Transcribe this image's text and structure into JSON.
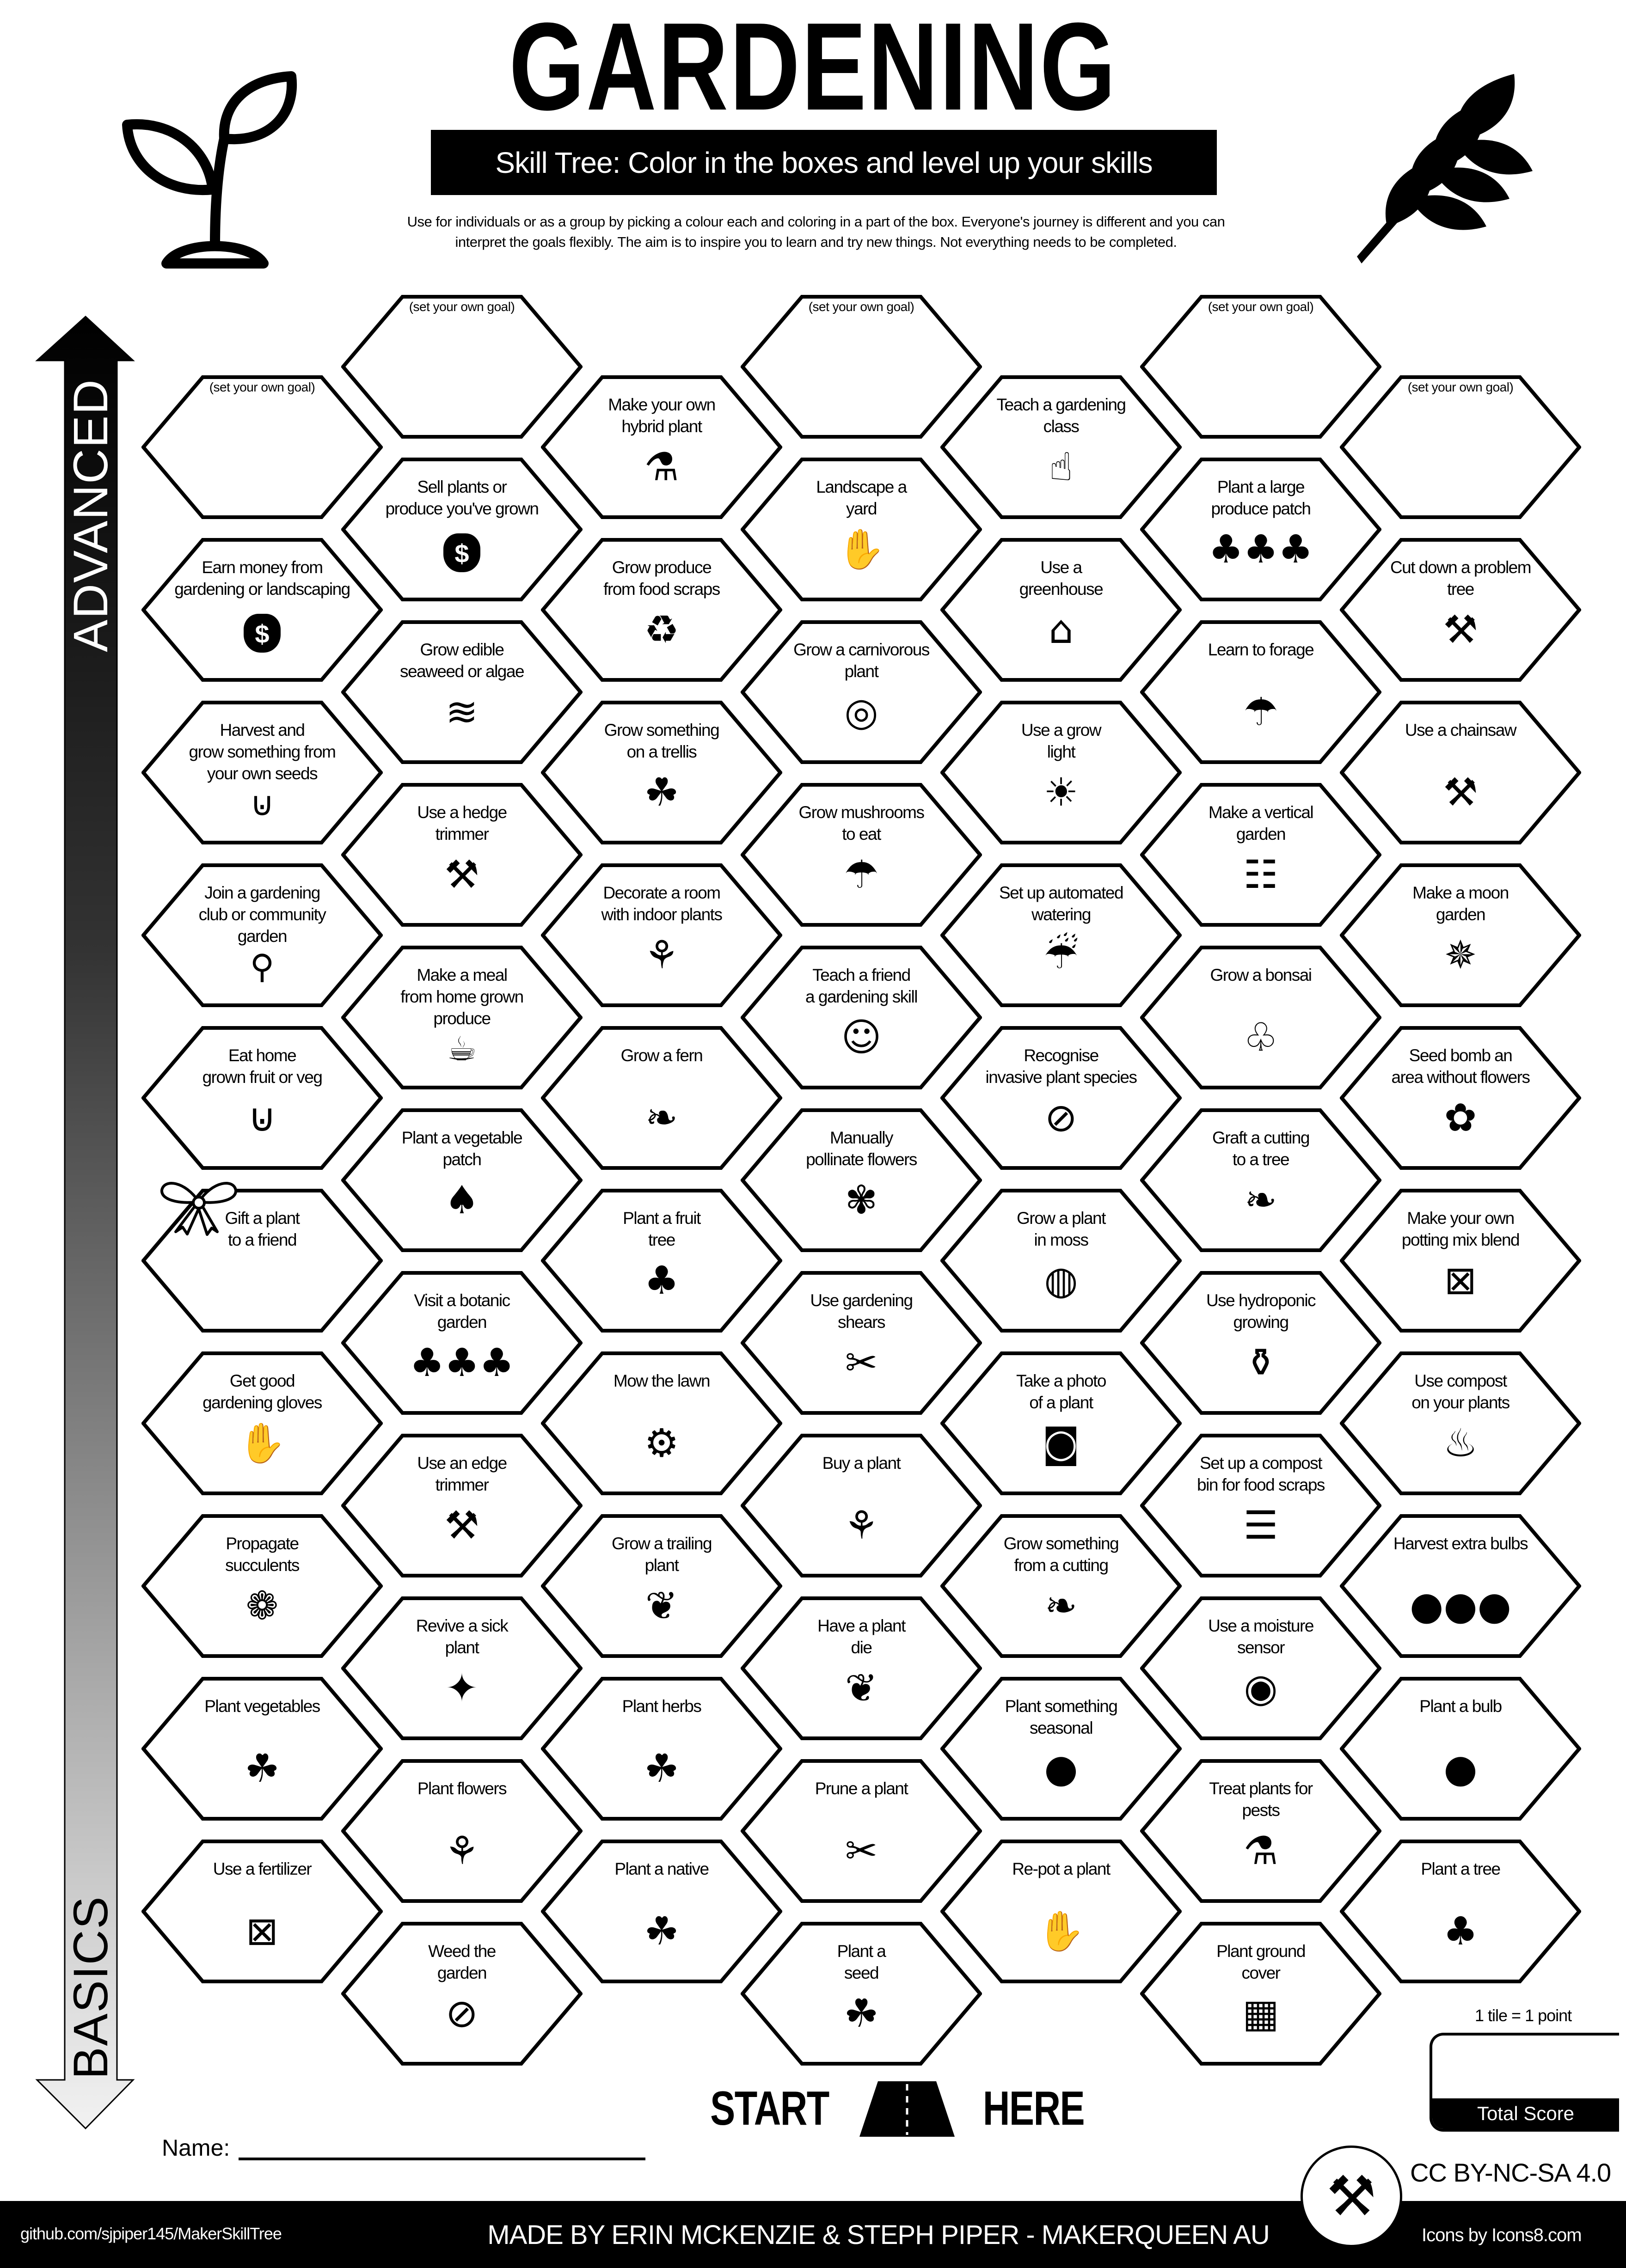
{
  "header": {
    "title": "GARDENING",
    "subtitle": "Skill Tree:  Color in the boxes and level up your skills",
    "description_line1": "Use for individuals or as a group by picking a colour each and coloring in a part of the box.  Everyone's journey is different and you can",
    "description_line2": "interpret the goals flexibly.  The aim is to inspire you to learn and try new things. Not everything needs to be completed.",
    "left_icon": "sprout-icon",
    "right_icon": "wheat-icon"
  },
  "arrow": {
    "top_label": "ADVANCED",
    "bottom_label": "BASICS"
  },
  "columns": [
    {
      "items": [
        {
          "label": "(set your own goal)",
          "goal": true
        },
        {
          "label": "Earn money from\ngardening or landscaping",
          "icon": "money-bag"
        },
        {
          "label": "Harvest and\ngrow something from\nyour own seeds",
          "icon": "basket"
        },
        {
          "label": "Join a gardening\nclub or community\ngarden",
          "icon": "location-pin"
        },
        {
          "label": "Eat home\ngrown fruit or veg",
          "icon": "basket"
        },
        {
          "label": "Gift a plant\nto a friend",
          "icon": "gift-bow"
        },
        {
          "label": "Get good\ngardening gloves",
          "icon": "gloves"
        },
        {
          "label": "Propagate\nsucculents",
          "icon": "succulent"
        },
        {
          "label": "Plant vegetables",
          "icon": "sprout"
        },
        {
          "label": "Use a fertilizer",
          "icon": "fertilizer-bag"
        }
      ]
    },
    {
      "items": [
        {
          "label": "(set your own goal)",
          "goal": true
        },
        {
          "label": "Sell plants or\nproduce you've grown",
          "icon": "money-bag"
        },
        {
          "label": "Grow edible\nseaweed or algae",
          "icon": "seaweed"
        },
        {
          "label": "Use a hedge\ntrimmer",
          "icon": "hedge-trimmer"
        },
        {
          "label": "Make a meal\nfrom home grown\nproduce",
          "icon": "meal"
        },
        {
          "label": "Plant a vegetable\npatch",
          "icon": "radish"
        },
        {
          "label": "Visit a botanic\ngarden",
          "icon": "garden-bed"
        },
        {
          "label": "Use an edge\ntrimmer",
          "icon": "edge-trimmer"
        },
        {
          "label": "Revive a sick\nplant",
          "icon": "sparkle-plant"
        },
        {
          "label": "Plant flowers",
          "icon": "flower-pot"
        },
        {
          "label": "Weed the\ngarden",
          "icon": "weed"
        }
      ]
    },
    {
      "items": [
        {
          "label": "Make your own\nhybrid plant",
          "icon": "hybrid-plant"
        },
        {
          "label": "Grow produce\nfrom food scraps",
          "icon": "food-scraps"
        },
        {
          "label": "Grow something\non a trellis",
          "icon": "money-plant"
        },
        {
          "label": "Decorate a room\nwith indoor plants",
          "icon": "indoor-plant"
        },
        {
          "label": "Grow a fern",
          "icon": "fern"
        },
        {
          "label": "Plant a fruit\ntree",
          "icon": "fruit-tree"
        },
        {
          "label": "Mow the lawn",
          "icon": "lawn-mower"
        },
        {
          "label": "Grow a trailing\nplant",
          "icon": "trailing-plant"
        },
        {
          "label": "Plant herbs",
          "icon": "sprout"
        },
        {
          "label": "Plant a native",
          "icon": "sprout"
        }
      ]
    },
    {
      "items": [
        {
          "label": "(set your own goal)",
          "goal": true
        },
        {
          "label": "Landscape a\nyard",
          "icon": "hand-flower"
        },
        {
          "label": "Grow a carnivorous\nplant",
          "icon": "venus-flytrap"
        },
        {
          "label": "Grow mushrooms\nto eat",
          "icon": "mushroom"
        },
        {
          "label": "Teach a friend\na gardening skill",
          "icon": "teaching"
        },
        {
          "label": "Manually\npollinate flowers",
          "icon": "pollinate"
        },
        {
          "label": "Use gardening\nshears",
          "icon": "shears"
        },
        {
          "label": "Buy a plant",
          "icon": "potted-plant"
        },
        {
          "label": "Have a plant\ndie",
          "icon": "dead-plant"
        },
        {
          "label": "Prune a plant",
          "icon": "pruner"
        },
        {
          "label": "Plant a\nseed",
          "icon": "seedling"
        }
      ]
    },
    {
      "items": [
        {
          "label": "Teach a gardening\nclass",
          "icon": "teacher"
        },
        {
          "label": "Use a\ngreenhouse",
          "icon": "greenhouse"
        },
        {
          "label": "Use a grow\nlight",
          "icon": "grow-light"
        },
        {
          "label": "Set up automated\nwatering",
          "icon": "sprinkler"
        },
        {
          "label": "Recognise\ninvasive plant species",
          "icon": "no-leaf"
        },
        {
          "label": "Grow a plant\nin moss",
          "icon": "moss-ball"
        },
        {
          "label": "Take a photo\nof a plant",
          "icon": "camera"
        },
        {
          "label": "Grow something\nfrom a cutting",
          "icon": "leaf-branch"
        },
        {
          "label": "Plant something\nseasonal",
          "icon": "pumpkin"
        },
        {
          "label": "Re-pot a plant",
          "icon": "hand-seedling"
        }
      ]
    },
    {
      "items": [
        {
          "label": "(set your own goal)",
          "goal": true
        },
        {
          "label": "Plant a large\nproduce patch",
          "icon": "garden-bed"
        },
        {
          "label": "Learn to forage",
          "icon": "mushroom"
        },
        {
          "label": "Make a vertical\ngarden",
          "icon": "vertical-garden"
        },
        {
          "label": "Grow a bonsai",
          "icon": "bonsai"
        },
        {
          "label": "Graft a cutting\nto a tree",
          "icon": "tree-branch"
        },
        {
          "label": "Use hydroponic\ngrowing",
          "icon": "bottle-plant"
        },
        {
          "label": "Set up a compost\nbin for food scraps",
          "icon": "compost-bin"
        },
        {
          "label": "Use a moisture\nsensor",
          "icon": "sensor"
        },
        {
          "label": "Treat plants for\npests",
          "icon": "spray-bottle"
        },
        {
          "label": "Plant ground\ncover",
          "icon": "ground-cover"
        }
      ]
    },
    {
      "items": [
        {
          "label": "(set your own goal)",
          "goal": true
        },
        {
          "label": "Cut down a problem\ntree",
          "icon": "chainsaw"
        },
        {
          "label": "Use a chainsaw",
          "icon": "chainsaw"
        },
        {
          "label": "Make a moon\ngarden",
          "icon": "moth"
        },
        {
          "label": "Seed bomb an\narea without flowers",
          "icon": "seed-bomb"
        },
        {
          "label": "Make your own\npotting mix blend",
          "icon": "soil-bag"
        },
        {
          "label": "Use compost\non your plants",
          "icon": "compost"
        },
        {
          "label": "Harvest extra bulbs",
          "icon": "garlic-bulbs"
        },
        {
          "label": "Plant a bulb",
          "icon": "garlic"
        },
        {
          "label": "Plant a tree",
          "icon": "tree-planting"
        }
      ]
    }
  ],
  "start": {
    "left": "START",
    "right": "HERE",
    "icon": "road-icon"
  },
  "name_label": "Name:",
  "score": {
    "note": "1 tile = 1 point",
    "label": "Total Score"
  },
  "license": "CC BY-NC-SA 4.0",
  "footer": {
    "github": "github.com/sjpiper145/MakerSkillTree",
    "credits": "MADE BY ERIN MCKENZIE & STEPH PIPER  -  MAKERQUEEN AU",
    "icons": "Icons by Icons8.com",
    "logo_icon": "maker-tools-logo-icon"
  }
}
